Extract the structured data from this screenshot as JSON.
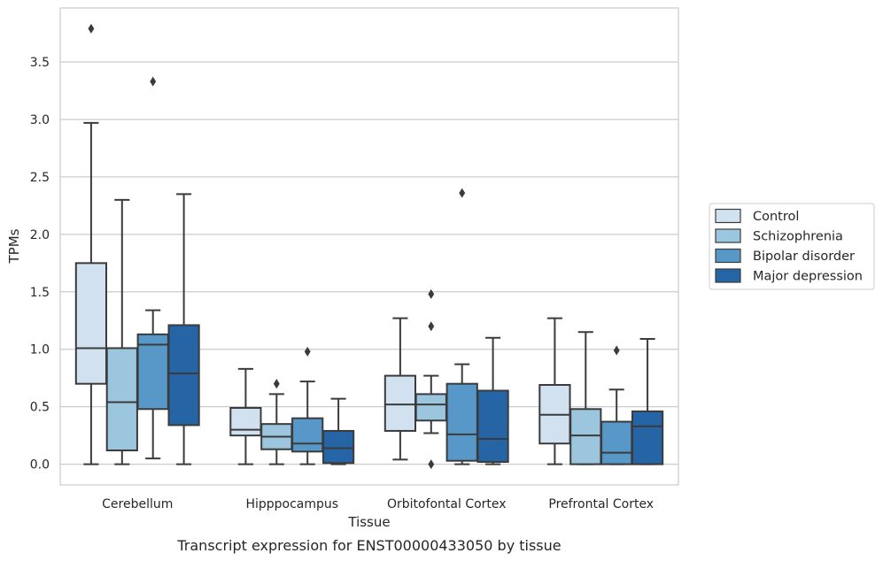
{
  "caption": "Transcript expression for ENST00000433050 by tissue",
  "chart_data": {
    "type": "box",
    "xlabel": "Tissue",
    "ylabel": "TPMs",
    "ylim": [
      -0.18,
      3.97
    ],
    "yticks": [
      0.0,
      0.5,
      1.0,
      1.5,
      2.0,
      2.5,
      3.0,
      3.5
    ],
    "ytick_labels": [
      "0.0",
      "0.5",
      "1.0",
      "1.5",
      "2.0",
      "2.5",
      "3.0",
      "3.5"
    ],
    "grid": "horizontal",
    "legend_position": "right",
    "categories": [
      "Cerebellum",
      "Hipppocampus",
      "Orbitofontal Cortex",
      "Prefrontal Cortex"
    ],
    "series": [
      {
        "name": "Control",
        "color": "#d1e1f0",
        "boxes": [
          {
            "whislo": 0.0,
            "q1": 0.7,
            "med": 1.01,
            "q3": 1.75,
            "whishi": 2.97,
            "fliers": [
              3.79
            ]
          },
          {
            "whislo": 0.0,
            "q1": 0.25,
            "med": 0.3,
            "q3": 0.49,
            "whishi": 0.83,
            "fliers": []
          },
          {
            "whislo": 0.04,
            "q1": 0.29,
            "med": 0.52,
            "q3": 0.77,
            "whishi": 1.27,
            "fliers": []
          },
          {
            "whislo": 0.0,
            "q1": 0.18,
            "med": 0.43,
            "q3": 0.69,
            "whishi": 1.27,
            "fliers": []
          }
        ]
      },
      {
        "name": "Schizophrenia",
        "color": "#9cc5de",
        "boxes": [
          {
            "whislo": 0.0,
            "q1": 0.12,
            "med": 0.54,
            "q3": 1.01,
            "whishi": 2.3,
            "fliers": []
          },
          {
            "whislo": 0.0,
            "q1": 0.13,
            "med": 0.24,
            "q3": 0.35,
            "whishi": 0.61,
            "fliers": [
              0.7
            ]
          },
          {
            "whislo": 0.27,
            "q1": 0.38,
            "med": 0.52,
            "q3": 0.61,
            "whishi": 0.77,
            "fliers": [
              0.0,
              1.2,
              1.48
            ]
          },
          {
            "whislo": 0.0,
            "q1": 0.0,
            "med": 0.25,
            "q3": 0.48,
            "whishi": 1.15,
            "fliers": []
          }
        ]
      },
      {
        "name": "Bipolar disorder",
        "color": "#5898c8",
        "boxes": [
          {
            "whislo": 0.05,
            "q1": 0.48,
            "med": 1.04,
            "q3": 1.13,
            "whishi": 1.34,
            "fliers": [
              3.33
            ]
          },
          {
            "whislo": 0.0,
            "q1": 0.11,
            "med": 0.18,
            "q3": 0.4,
            "whishi": 0.72,
            "fliers": [
              0.98
            ]
          },
          {
            "whislo": 0.0,
            "q1": 0.03,
            "med": 0.26,
            "q3": 0.7,
            "whishi": 0.87,
            "fliers": [
              2.36
            ]
          },
          {
            "whislo": 0.0,
            "q1": 0.0,
            "med": 0.1,
            "q3": 0.37,
            "whishi": 0.65,
            "fliers": [
              0.99
            ]
          }
        ]
      },
      {
        "name": "Major depression",
        "color": "#2565a6",
        "boxes": [
          {
            "whislo": 0.0,
            "q1": 0.34,
            "med": 0.79,
            "q3": 1.21,
            "whishi": 2.35,
            "fliers": []
          },
          {
            "whislo": 0.0,
            "q1": 0.01,
            "med": 0.14,
            "q3": 0.29,
            "whishi": 0.57,
            "fliers": []
          },
          {
            "whislo": 0.0,
            "q1": 0.02,
            "med": 0.22,
            "q3": 0.64,
            "whishi": 1.1,
            "fliers": []
          },
          {
            "whislo": 0.0,
            "q1": 0.0,
            "med": 0.33,
            "q3": 0.46,
            "whishi": 1.09,
            "fliers": []
          }
        ]
      }
    ]
  }
}
